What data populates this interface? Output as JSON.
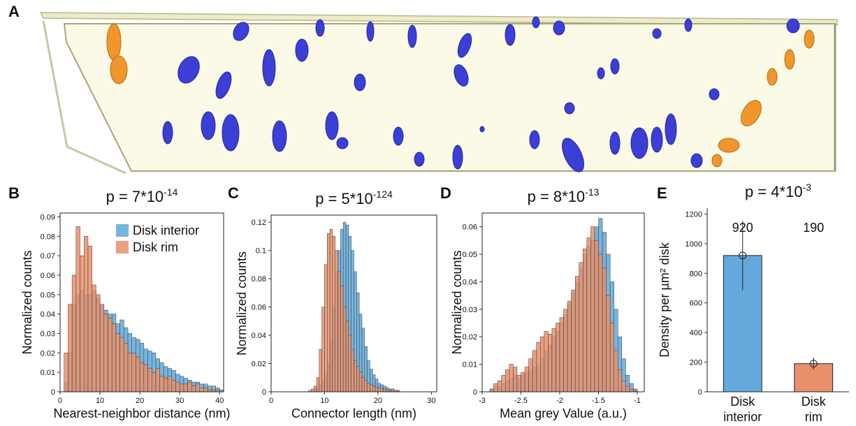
{
  "panel_labels": [
    "A",
    "B",
    "C",
    "D",
    "E"
  ],
  "chart_data": [
    {
      "type": "histogram",
      "title": "p = 7*10",
      "title_exponent": "-14",
      "x_label": "Nearest-neighbor distance (nm)",
      "y_label": "Normalized counts",
      "xlim": [
        0,
        41
      ],
      "xticks": [
        0,
        10,
        20,
        30,
        40
      ],
      "ylim": [
        0,
        0.092
      ],
      "yticks": [
        0,
        0.01,
        0.02,
        0.03,
        0.04,
        0.05,
        0.06,
        0.07,
        0.08,
        0.09
      ],
      "legend": "upper right",
      "bins": [
        1,
        2,
        3,
        4,
        5,
        6,
        7,
        8,
        9,
        10,
        11,
        12,
        13,
        14,
        15,
        16,
        17,
        18,
        19,
        20,
        21,
        22,
        23,
        24,
        25,
        26,
        27,
        28,
        29,
        30,
        31,
        32,
        33,
        34,
        35,
        36,
        37,
        38,
        39,
        40,
        41
      ],
      "series": [
        {
          "name": "Disk interior",
          "color": "#5fa8d9",
          "values": [
            0.005,
            0.02,
            0.045,
            0.05,
            0.052,
            0.05,
            0.05,
            0.052,
            0.048,
            0.045,
            0.042,
            0.04,
            0.04,
            0.035,
            0.037,
            0.033,
            0.03,
            0.028,
            0.027,
            0.025,
            0.022,
            0.021,
            0.02,
            0.017,
            0.015,
            0.013,
            0.012,
            0.011,
            0.009,
            0.008,
            0.007,
            0.006,
            0.005,
            0.005,
            0.004,
            0.004,
            0.003,
            0.003,
            0.002,
            0.001
          ]
        },
        {
          "name": "Disk rim",
          "color": "#e8916b",
          "values": [
            0.02,
            0.045,
            0.06,
            0.085,
            0.07,
            0.08,
            0.075,
            0.055,
            0.05,
            0.045,
            0.04,
            0.038,
            0.035,
            0.03,
            0.028,
            0.025,
            0.02,
            0.02,
            0.018,
            0.015,
            0.014,
            0.012,
            0.01,
            0.012,
            0.008,
            0.007,
            0.008,
            0.006,
            0.005,
            0.004,
            0.004,
            0.005,
            0.003,
            0.004,
            0.002,
            0.002,
            0.001,
            0.001,
            0.001,
            0
          ]
        }
      ]
    },
    {
      "type": "histogram",
      "title": "p = 5*10",
      "title_exponent": "-124",
      "x_label": "Connector length (nm)",
      "y_label": "Normalized counts",
      "xlim": [
        0,
        31
      ],
      "xticks": [
        0,
        10,
        20,
        30
      ],
      "ylim": [
        0,
        0.125
      ],
      "yticks": [
        0,
        0.02,
        0.04,
        0.06,
        0.08,
        0.1,
        0.12
      ],
      "bins": [
        6,
        6.5,
        7,
        7.5,
        8,
        8.5,
        9,
        9.5,
        10,
        10.5,
        11,
        11.5,
        12,
        12.5,
        13,
        13.5,
        14,
        14.5,
        15,
        15.5,
        16,
        16.5,
        17,
        17.5,
        18,
        18.5,
        19,
        19.5,
        20,
        20.5,
        21,
        21.5,
        22,
        22.5,
        23,
        23.5,
        24
      ],
      "series": [
        {
          "name": "Disk interior",
          "color": "#5fa8d9",
          "values": [
            0,
            0,
            0,
            0,
            0.002,
            0.003,
            0.005,
            0.008,
            0.012,
            0.02,
            0.035,
            0.06,
            0.085,
            0.1,
            0.115,
            0.12,
            0.118,
            0.11,
            0.1,
            0.085,
            0.07,
            0.055,
            0.045,
            0.032,
            0.022,
            0.016,
            0.012,
            0.009,
            0.006,
            0.005,
            0.004,
            0.003,
            0.002,
            0.002,
            0.001,
            0.001
          ]
        },
        {
          "name": "Disk rim",
          "color": "#e8916b",
          "values": [
            0,
            0,
            0.001,
            0.002,
            0.004,
            0.01,
            0.03,
            0.06,
            0.09,
            0.112,
            0.115,
            0.11,
            0.1,
            0.085,
            0.075,
            0.06,
            0.05,
            0.04,
            0.03,
            0.022,
            0.018,
            0.014,
            0.01,
            0.008,
            0.006,
            0.005,
            0.004,
            0.003,
            0.003,
            0.002,
            0.002,
            0.001,
            0.001,
            0.002,
            0.001,
            0.001
          ]
        }
      ]
    },
    {
      "type": "histogram",
      "title": "p = 8*10",
      "title_exponent": "-13",
      "x_label": "Mean grey Value (a.u.)",
      "y_label": "Normalized counts",
      "xlim": [
        -3,
        -0.91
      ],
      "xticks": [
        -3,
        -2.5,
        -2,
        -1.5,
        -1
      ],
      "ylim": [
        0,
        0.065
      ],
      "yticks": [
        0,
        0.01,
        0.02,
        0.03,
        0.04,
        0.05,
        0.06
      ],
      "bins": [
        -2.9,
        -2.85,
        -2.8,
        -2.75,
        -2.7,
        -2.65,
        -2.6,
        -2.55,
        -2.5,
        -2.45,
        -2.4,
        -2.35,
        -2.3,
        -2.25,
        -2.2,
        -2.15,
        -2.1,
        -2.05,
        -2,
        -1.95,
        -1.9,
        -1.85,
        -1.8,
        -1.75,
        -1.7,
        -1.65,
        -1.6,
        -1.55,
        -1.5,
        -1.45,
        -1.4,
        -1.35,
        -1.3,
        -1.25,
        -1.2,
        -1.15,
        -1.1,
        -1.05,
        -1
      ],
      "series": [
        {
          "name": "Disk interior",
          "color": "#5fa8d9",
          "values": [
            0.001,
            0.002,
            0.002,
            0.003,
            0.004,
            0.005,
            0.006,
            0.005,
            0.006,
            0.007,
            0.008,
            0.009,
            0.01,
            0.012,
            0.015,
            0.017,
            0.02,
            0.022,
            0.025,
            0.028,
            0.032,
            0.036,
            0.04,
            0.045,
            0.05,
            0.053,
            0.055,
            0.06,
            0.063,
            0.058,
            0.05,
            0.04,
            0.03,
            0.02,
            0.012,
            0.006,
            0.003,
            0.001
          ]
        },
        {
          "name": "Disk rim",
          "color": "#e8916b",
          "values": [
            0.001,
            0.003,
            0.004,
            0.006,
            0.008,
            0.01,
            0.009,
            0.006,
            0.007,
            0.009,
            0.012,
            0.015,
            0.018,
            0.02,
            0.022,
            0.021,
            0.023,
            0.025,
            0.027,
            0.03,
            0.033,
            0.037,
            0.042,
            0.047,
            0.052,
            0.056,
            0.06,
            0.055,
            0.05,
            0.045,
            0.035,
            0.025,
            0.015,
            0.008,
            0.004,
            0.002,
            0.001,
            0.0005
          ]
        }
      ]
    },
    {
      "type": "bar",
      "title": "p = 4*10",
      "title_exponent": "-3",
      "y_label": "Density per µm² disk",
      "categories": [
        "Disk interior",
        "Disk rim"
      ],
      "values": [
        920,
        190
      ],
      "errors": [
        235,
        40
      ],
      "colors": [
        "#64a9db",
        "#e8916b"
      ],
      "ylim": [
        0,
        1240
      ],
      "yticks": [
        0,
        200,
        400,
        600,
        800,
        1000,
        1200
      ]
    }
  ]
}
